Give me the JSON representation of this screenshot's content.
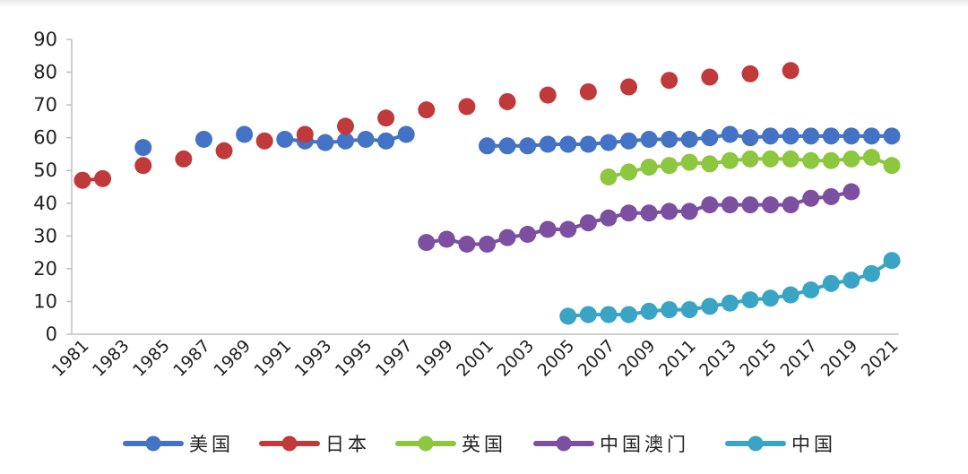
{
  "chart_data": {
    "type": "scatter",
    "title": "",
    "xlabel": "",
    "ylabel": "",
    "xlim": [
      1981,
      2021
    ],
    "ylim": [
      0,
      90
    ],
    "y_ticks": [
      0,
      10,
      20,
      30,
      40,
      50,
      60,
      70,
      80,
      90
    ],
    "x_ticks": [
      "1981",
      "1983",
      "1985",
      "1987",
      "1989",
      "1991",
      "1993",
      "1995",
      "1997",
      "1999",
      "2001",
      "2003",
      "2005",
      "2007",
      "2009",
      "2011",
      "2013",
      "2015",
      "2017",
      "2019",
      "2021"
    ],
    "grid": false,
    "legend_position": "bottom",
    "series": [
      {
        "name": "美国",
        "color": "#4472C4",
        "points": [
          [
            1984,
            57
          ],
          [
            1987,
            59.5
          ],
          [
            1989,
            61
          ],
          [
            1991,
            59.5
          ],
          [
            1992,
            59
          ],
          [
            1993,
            58.5
          ],
          [
            1994,
            59
          ],
          [
            1995,
            59.5
          ],
          [
            1996,
            59
          ],
          [
            1997,
            61
          ],
          [
            2001,
            57.5
          ],
          [
            2002,
            57.5
          ],
          [
            2003,
            57.5
          ],
          [
            2004,
            58
          ],
          [
            2005,
            58
          ],
          [
            2006,
            58
          ],
          [
            2007,
            58.5
          ],
          [
            2008,
            59
          ],
          [
            2009,
            59.5
          ],
          [
            2010,
            59.5
          ],
          [
            2011,
            59.5
          ],
          [
            2012,
            60
          ],
          [
            2013,
            61
          ],
          [
            2014,
            60
          ],
          [
            2015,
            60.5
          ],
          [
            2016,
            60.5
          ],
          [
            2017,
            60.5
          ],
          [
            2018,
            60.5
          ],
          [
            2019,
            60.5
          ],
          [
            2020,
            60.5
          ],
          [
            2021,
            60.5
          ]
        ]
      },
      {
        "name": "日本",
        "color": "#C0393B",
        "points": [
          [
            1981,
            47
          ],
          [
            1982,
            47.5
          ],
          [
            1984,
            51.5
          ],
          [
            1986,
            53.5
          ],
          [
            1988,
            56
          ],
          [
            1990,
            59
          ],
          [
            1992,
            61
          ],
          [
            1994,
            63.5
          ],
          [
            1996,
            66
          ],
          [
            1998,
            68.5
          ],
          [
            2000,
            69.5
          ],
          [
            2002,
            71
          ],
          [
            2004,
            73
          ],
          [
            2006,
            74
          ],
          [
            2008,
            75.5
          ],
          [
            2010,
            77.5
          ],
          [
            2012,
            78.5
          ],
          [
            2014,
            79.5
          ],
          [
            2016,
            80.5
          ]
        ]
      },
      {
        "name": "英国",
        "color": "#8DC63F",
        "points": [
          [
            2007,
            48
          ],
          [
            2008,
            49.5
          ],
          [
            2009,
            51
          ],
          [
            2010,
            51.5
          ],
          [
            2011,
            52.5
          ],
          [
            2012,
            52
          ],
          [
            2013,
            53
          ],
          [
            2014,
            53.5
          ],
          [
            2015,
            53.5
          ],
          [
            2016,
            53.5
          ],
          [
            2017,
            53
          ],
          [
            2018,
            53
          ],
          [
            2019,
            53.5
          ],
          [
            2020,
            54
          ],
          [
            2021,
            51.5
          ]
        ]
      },
      {
        "name": "中国澳门",
        "color": "#7C4FA0",
        "points": [
          [
            1998,
            28
          ],
          [
            1999,
            29
          ],
          [
            2000,
            27.5
          ],
          [
            2001,
            27.5
          ],
          [
            2002,
            29.5
          ],
          [
            2003,
            30.5
          ],
          [
            2004,
            32
          ],
          [
            2005,
            32
          ],
          [
            2006,
            34
          ],
          [
            2007,
            35.5
          ],
          [
            2008,
            37
          ],
          [
            2009,
            37
          ],
          [
            2010,
            37.5
          ],
          [
            2011,
            37.5
          ],
          [
            2012,
            39.5
          ],
          [
            2013,
            39.5
          ],
          [
            2014,
            39.5
          ],
          [
            2015,
            39.5
          ],
          [
            2016,
            39.5
          ],
          [
            2017,
            41.5
          ],
          [
            2018,
            42
          ],
          [
            2019,
            43.5
          ]
        ]
      },
      {
        "name": "中国",
        "color": "#3AA4C4",
        "points": [
          [
            2005,
            5.5
          ],
          [
            2006,
            6
          ],
          [
            2007,
            6
          ],
          [
            2008,
            6
          ],
          [
            2009,
            7
          ],
          [
            2010,
            7.5
          ],
          [
            2011,
            7.5
          ],
          [
            2012,
            8.5
          ],
          [
            2013,
            9.5
          ],
          [
            2014,
            10.5
          ],
          [
            2015,
            11
          ],
          [
            2016,
            12
          ],
          [
            2017,
            13.5
          ],
          [
            2018,
            15.5
          ],
          [
            2019,
            16.5
          ],
          [
            2020,
            18.5
          ],
          [
            2021,
            22.5
          ]
        ]
      }
    ]
  }
}
